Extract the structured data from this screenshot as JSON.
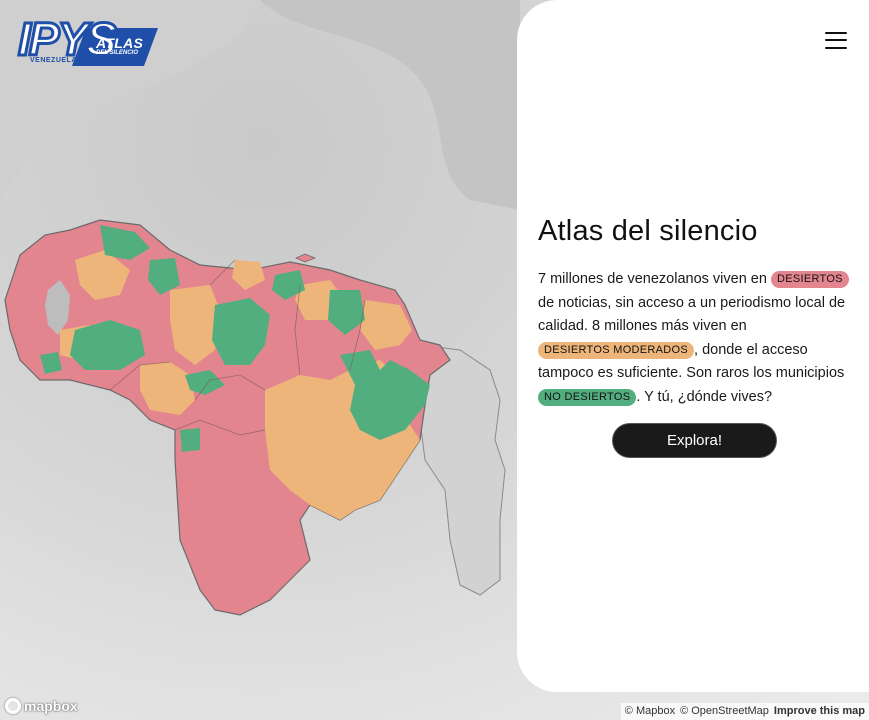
{
  "logo": {
    "mark": "IPYS",
    "sub": "VENEZUELA",
    "name": "ATLAS",
    "tagline": "DEL SILENCIO"
  },
  "icons": {
    "menu": "hamburger-menu-icon",
    "mapbox": "mapbox-logo-icon"
  },
  "panel": {
    "title": "Atlas del silencio",
    "text_1": "7 millones de venezolanos viven en ",
    "tag_red": "DESIERTOS",
    "text_2": " de noticias, sin acceso a un periodismo local de calidad. 8 millones más viven en ",
    "tag_orange": "DESIERTOS MODERADOS",
    "text_3": ", donde el acceso tampoco es suficiente. Son raros los municipios ",
    "tag_green": "NO DESIERTOS",
    "text_4": ". Y tú, ¿dónde vives?",
    "cta": "Explora!"
  },
  "map": {
    "legend_colors": {
      "desiertos": "#e3858e",
      "moderados": "#eeb57a",
      "no_desiertos": "#52ae7e",
      "other": "#d4d4d4"
    }
  },
  "footer": {
    "mapbox_label": "mapbox",
    "attribution_mapbox": "© Mapbox",
    "attribution_osm": "© OpenStreetMap",
    "improve": "Improve this map"
  }
}
